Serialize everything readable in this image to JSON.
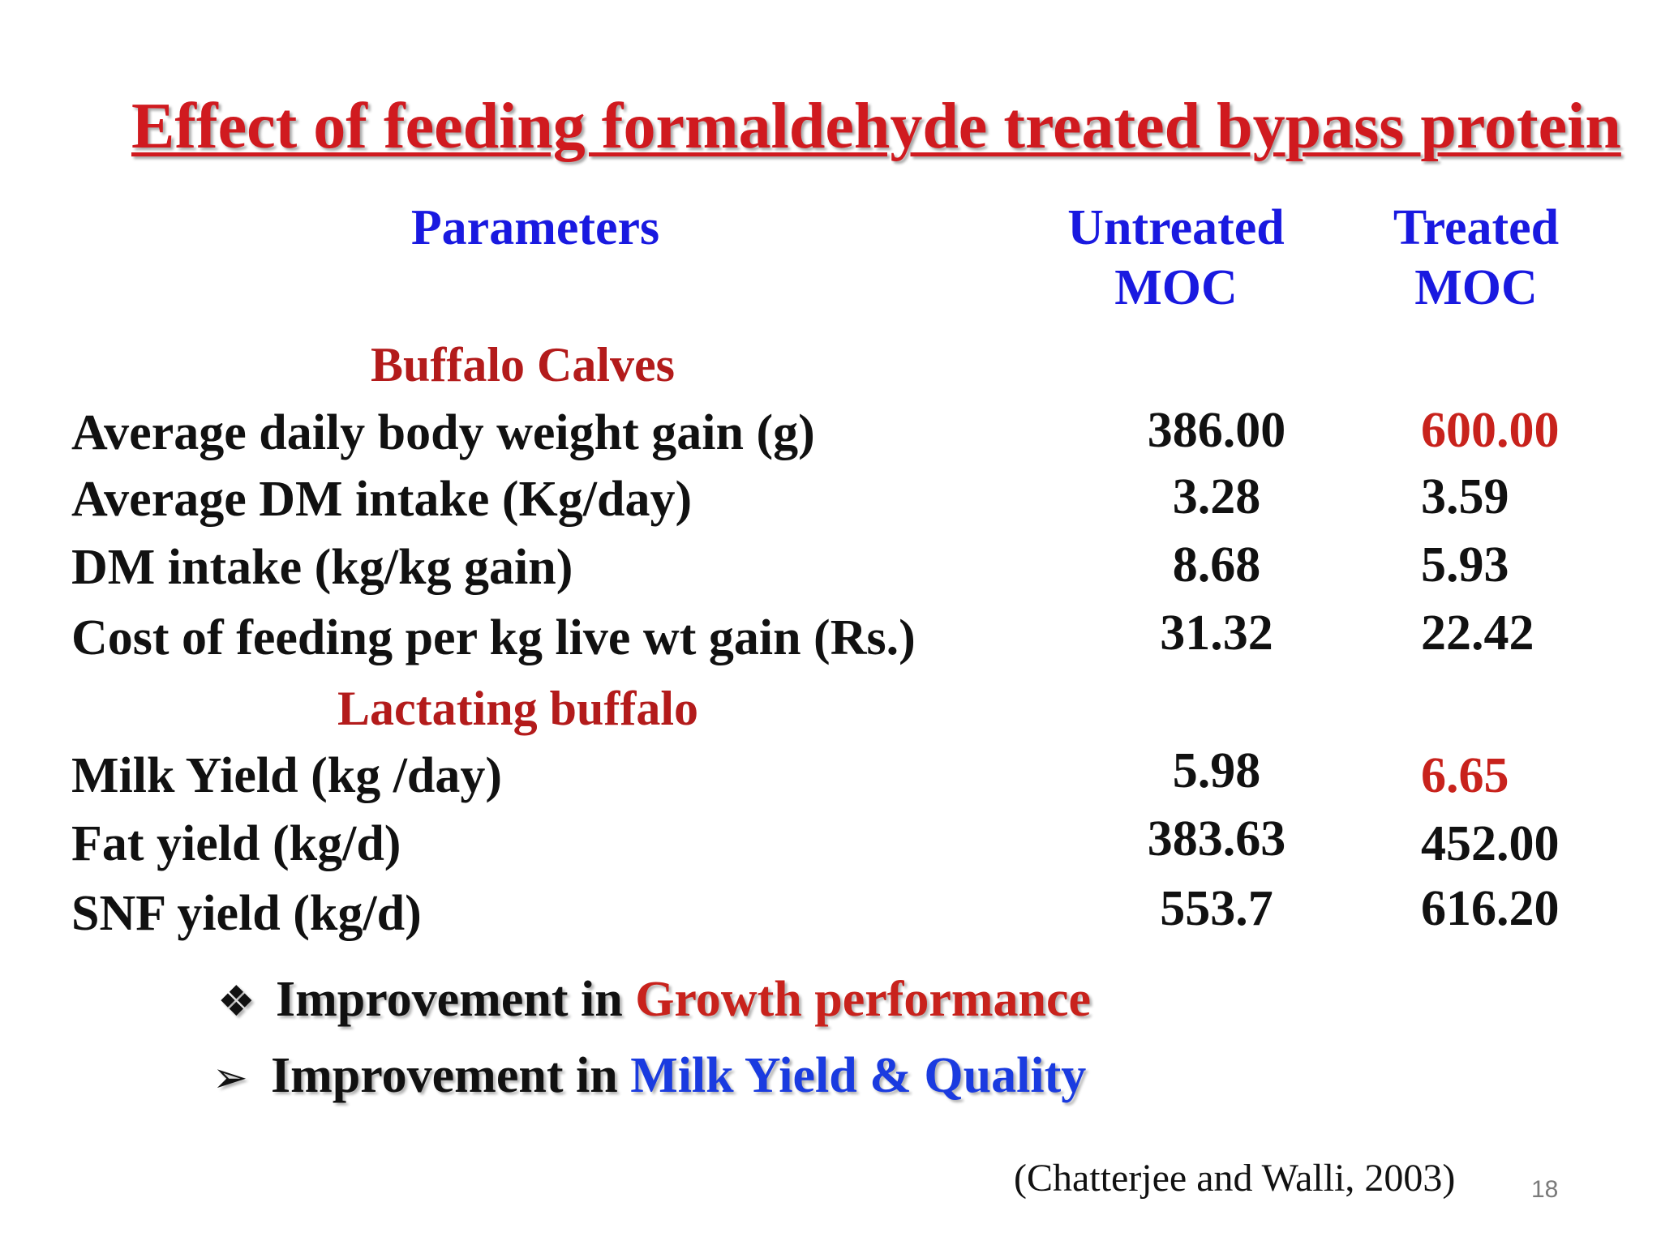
{
  "title": "Effect of feeding formaldehyde treated bypass protein",
  "headers": {
    "parameters": "Parameters",
    "untreated_line1": "Untreated",
    "untreated_line2": "MOC",
    "treated_line1": "Treated",
    "treated_line2": "MOC"
  },
  "sections": {
    "calves": "Buffalo Calves",
    "lactating": "Lactating buffalo"
  },
  "rows": [
    {
      "label": "Average daily body weight gain (g)",
      "untreated": "386.00",
      "treated": "600.00"
    },
    {
      "label": "Average DM intake (Kg/day)",
      "untreated": "3.28",
      "treated": "3.59"
    },
    {
      "label": "DM intake (kg/kg gain)",
      "untreated": "8.68",
      "treated": "5.93"
    },
    {
      "label": "Cost of feeding per kg live wt gain (Rs.)",
      "untreated": "31.32",
      "treated": "22.42"
    },
    {
      "label": "Milk Yield (kg /day)",
      "untreated": "5.98",
      "treated": "6.65"
    },
    {
      "label": "Fat yield (kg/d)",
      "untreated": "383.63",
      "treated": "452.00"
    },
    {
      "label": "SNF yield (kg/d)",
      "untreated": "553.7",
      "treated": "616.20"
    }
  ],
  "bullets": [
    {
      "symbol": "❖",
      "prefix": "Improvement in ",
      "highlight": "Growth performance"
    },
    {
      "symbol": "➢",
      "prefix": "Improvement in ",
      "highlight": "Milk Yield & Quality"
    }
  ],
  "citation": "(Chatterjee and Walli, 2003)",
  "page_number": "18",
  "colors": {
    "title": "#d01a1f",
    "header": "#1919e0",
    "section": "#b31b1b",
    "highlight_red": "#c8221c",
    "highlight_blue": "#1a3be0"
  }
}
